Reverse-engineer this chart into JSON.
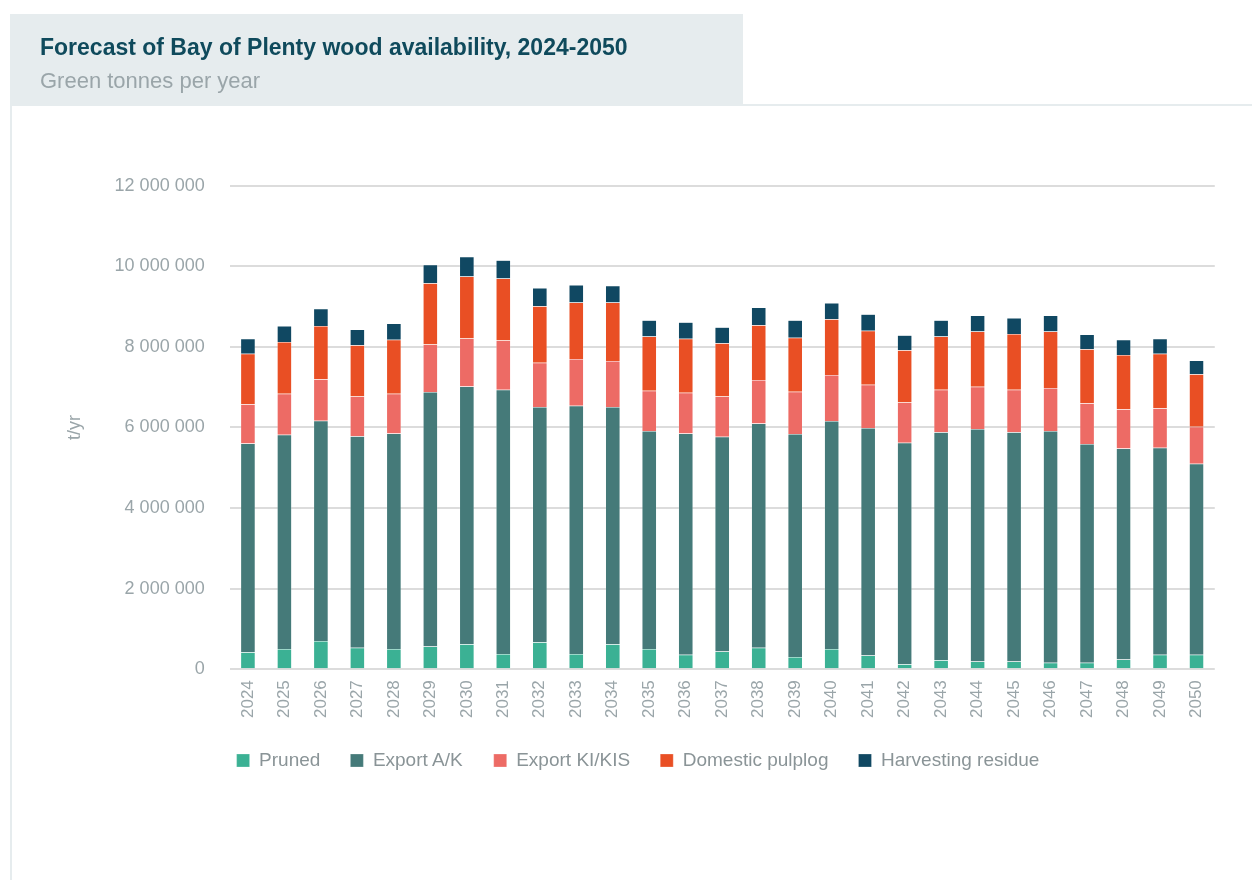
{
  "chart_data": {
    "type": "bar",
    "title": "Forecast of Bay of Plenty wood availability, 2024-2050",
    "subtitle": "Green tonnes per year",
    "ylabel": "t/yr",
    "stacked": true,
    "grid": "y",
    "legend": "bottom",
    "categories": [
      "2024",
      "2025",
      "2026",
      "2027",
      "2028",
      "2029",
      "2030",
      "2031",
      "2032",
      "2033",
      "2034",
      "2035",
      "2036",
      "2037",
      "2038",
      "2039",
      "2040",
      "2041",
      "2042",
      "2043",
      "2044",
      "2045",
      "2046",
      "2047",
      "2048",
      "2049",
      "2050"
    ],
    "ylim": [
      0,
      12000000
    ],
    "yticks": [
      {
        "value": 0,
        "label": "0"
      },
      {
        "value": 2000000,
        "label": "2 000 000"
      },
      {
        "value": 4000000,
        "label": "4 000 000"
      },
      {
        "value": 6000000,
        "label": "6 000 000"
      },
      {
        "value": 8000000,
        "label": "8 000 000"
      },
      {
        "value": 10000000,
        "label": "10 000 000"
      },
      {
        "value": 12000000,
        "label": "12 000 000"
      }
    ],
    "series": [
      {
        "name": "Pruned",
        "color": "#3bb194",
        "values": [
          420000,
          500000,
          700000,
          530000,
          500000,
          560000,
          620000,
          380000,
          670000,
          380000,
          620000,
          500000,
          360000,
          440000,
          530000,
          300000,
          500000,
          340000,
          120000,
          220000,
          190000,
          190000,
          160000,
          160000,
          240000,
          360000,
          360000
        ]
      },
      {
        "name": "Export A/K",
        "color": "#457a79",
        "values": [
          5180000,
          5320000,
          5470000,
          5250000,
          5350000,
          6320000,
          6400000,
          6560000,
          5840000,
          6160000,
          5890000,
          5410000,
          5490000,
          5330000,
          5570000,
          5540000,
          5660000,
          5650000,
          5500000,
          5660000,
          5770000,
          5690000,
          5750000,
          5430000,
          5240000,
          5140000,
          4740000
        ]
      },
      {
        "name": "Export KI/KIS",
        "color": "#ed6b65",
        "values": [
          980000,
          1020000,
          1030000,
          990000,
          990000,
          1180000,
          1190000,
          1220000,
          1100000,
          1160000,
          1140000,
          1000000,
          1010000,
          1000000,
          1080000,
          1050000,
          1140000,
          1070000,
          1000000,
          1060000,
          1050000,
          1060000,
          1070000,
          1010000,
          970000,
          980000,
          920000
        ]
      },
      {
        "name": "Domestic pulplog",
        "color": "#e94f24",
        "values": [
          1250000,
          1280000,
          1320000,
          1270000,
          1340000,
          1520000,
          1540000,
          1540000,
          1400000,
          1400000,
          1450000,
          1350000,
          1340000,
          1320000,
          1360000,
          1340000,
          1390000,
          1340000,
          1300000,
          1320000,
          1370000,
          1380000,
          1400000,
          1340000,
          1350000,
          1350000,
          1300000
        ]
      },
      {
        "name": "Harvesting residue",
        "color": "#104862",
        "values": [
          370000,
          400000,
          430000,
          390000,
          400000,
          460000,
          490000,
          450000,
          450000,
          440000,
          420000,
          400000,
          410000,
          400000,
          440000,
          430000,
          400000,
          410000,
          370000,
          400000,
          400000,
          400000,
          400000,
          370000,
          380000,
          370000,
          340000
        ]
      }
    ]
  }
}
